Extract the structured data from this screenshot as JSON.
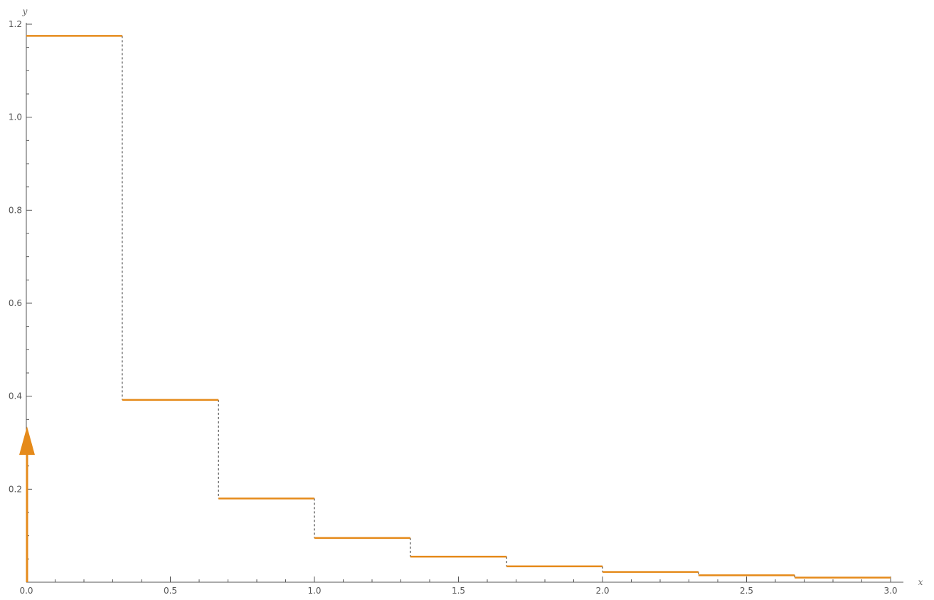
{
  "chart_data": {
    "type": "line",
    "subtype": "step",
    "xlabel": "x",
    "ylabel": "y",
    "xlim": [
      0,
      3
    ],
    "ylim": [
      0,
      1.2
    ],
    "xticks": [
      0.0,
      0.5,
      1.0,
      1.5,
      2.0,
      2.5,
      3.0
    ],
    "xtick_labels": [
      "0.0",
      "0.5",
      "1.0",
      "1.5",
      "2.0",
      "2.5",
      "3.0"
    ],
    "yticks": [
      0.2,
      0.4,
      0.6,
      0.8,
      1.0,
      1.2
    ],
    "ytick_labels": [
      "0.2",
      "0.4",
      "0.6",
      "0.8",
      "1.0",
      "1.2"
    ],
    "grid": false,
    "series": [
      {
        "color": "#e58a1a",
        "steps": [
          {
            "x0": 0.0,
            "x1": 0.333,
            "y": 1.175
          },
          {
            "x0": 0.333,
            "x1": 0.667,
            "y": 0.392
          },
          {
            "x0": 0.667,
            "x1": 1.0,
            "y": 0.18
          },
          {
            "x0": 1.0,
            "x1": 1.333,
            "y": 0.095
          },
          {
            "x0": 1.333,
            "x1": 1.667,
            "y": 0.055
          },
          {
            "x0": 1.667,
            "x1": 2.0,
            "y": 0.034
          },
          {
            "x0": 2.0,
            "x1": 2.333,
            "y": 0.022
          },
          {
            "x0": 2.333,
            "x1": 2.667,
            "y": 0.015
          },
          {
            "x0": 2.667,
            "x1": 3.0,
            "y": 0.01
          }
        ],
        "jump_style": "dashed"
      }
    ],
    "impulses": [
      {
        "x": 0.0,
        "height": 0.335,
        "color": "#e58a1a"
      }
    ]
  }
}
